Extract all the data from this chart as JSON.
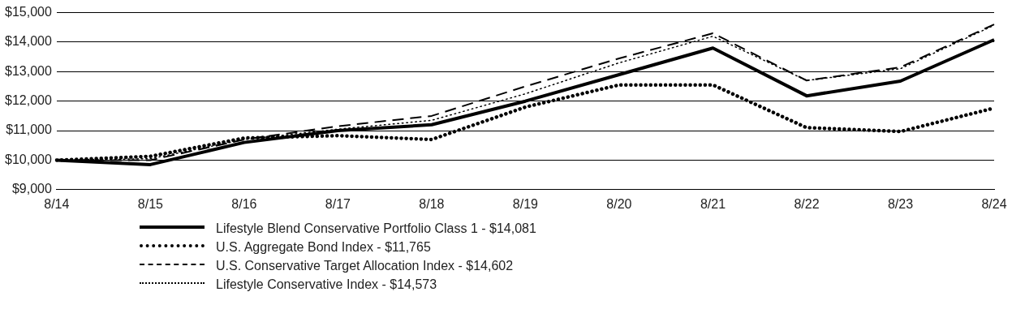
{
  "chart_data": {
    "type": "line",
    "categories": [
      "8/14",
      "8/15",
      "8/16",
      "8/17",
      "8/18",
      "8/19",
      "8/20",
      "8/21",
      "8/22",
      "8/23",
      "8/24"
    ],
    "ylim": [
      9000,
      15000
    ],
    "yticks": [
      {
        "value": 9000,
        "label": "$9,000"
      },
      {
        "value": 10000,
        "label": "$10,000"
      },
      {
        "value": 11000,
        "label": "$11,000"
      },
      {
        "value": 12000,
        "label": "$12,000"
      },
      {
        "value": 13000,
        "label": "$13,000"
      },
      {
        "value": 14000,
        "label": "$14,000"
      },
      {
        "value": 15000,
        "label": "$15,000"
      }
    ],
    "grid": "y",
    "legend": "bottom left",
    "marker": "none",
    "series": [
      {
        "name": "Lifestyle Blend Conservative Portfolio Class 1 - $14,081",
        "color": "#000000",
        "line_style": "solid",
        "values": [
          10000,
          9850,
          10600,
          11000,
          11200,
          12000,
          12900,
          13800,
          12180,
          12680,
          14081
        ]
      },
      {
        "name": "U.S. Aggregate Bond Index - $11,765",
        "color": "#000000",
        "line_style": "dotted",
        "values": [
          10000,
          10130,
          10750,
          10830,
          10700,
          11800,
          12550,
          12550,
          11100,
          10970,
          11765
        ]
      },
      {
        "name": "U.S. Conservative Target Allocation Index - $14,602",
        "color": "#000000",
        "line_style": "dashed",
        "values": [
          10000,
          10000,
          10700,
          11150,
          11500,
          12500,
          13450,
          14300,
          12700,
          13150,
          14602
        ]
      },
      {
        "name": "Lifestyle Conservative Index - $14,573",
        "color": "#000000",
        "line_style": "dotted",
        "values": [
          10000,
          10050,
          10700,
          11050,
          11350,
          12250,
          13300,
          14200,
          12700,
          13100,
          14573
        ]
      }
    ]
  }
}
